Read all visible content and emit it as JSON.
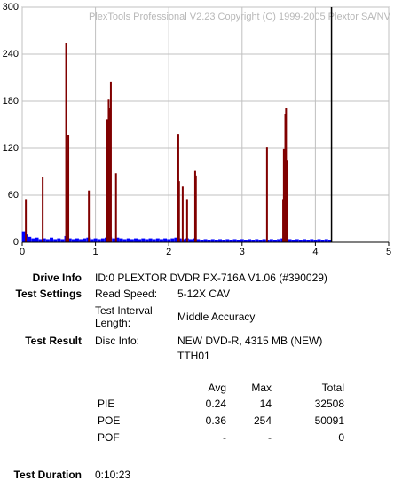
{
  "chart_data": {
    "type": "bar",
    "watermark": "PlexTools Professional V2.23 Copyright (C) 1999-2005 Plextor SA/NV",
    "xlim": [
      0,
      5
    ],
    "xticks": [
      0,
      1,
      2,
      3,
      4,
      5
    ],
    "ylim": [
      0,
      300
    ],
    "yticks": [
      0,
      60,
      120,
      180,
      240,
      300
    ],
    "grid": true,
    "end_marker": 4.22,
    "series": [
      {
        "name": "PIE",
        "color": "#0000ff",
        "x": [
          0.02,
          0.05,
          0.1,
          0.15,
          0.2,
          0.25,
          0.3,
          0.35,
          0.4,
          0.45,
          0.5,
          0.55,
          0.6,
          0.65,
          0.7,
          0.75,
          0.8,
          0.85,
          0.9,
          0.95,
          1,
          1.05,
          1.1,
          1.15,
          1.2,
          1.25,
          1.3,
          1.35,
          1.4,
          1.45,
          1.5,
          1.55,
          1.6,
          1.65,
          1.7,
          1.75,
          1.8,
          1.85,
          1.9,
          1.95,
          2,
          2.05,
          2.1,
          2.15,
          2.2,
          2.25,
          2.3,
          2.35,
          2.4,
          2.45,
          2.5,
          2.55,
          2.6,
          2.65,
          2.7,
          2.75,
          2.8,
          2.85,
          2.9,
          2.95,
          3,
          3.05,
          3.1,
          3.15,
          3.2,
          3.25,
          3.3,
          3.35,
          3.4,
          3.45,
          3.5,
          3.55,
          3.6,
          3.65,
          3.7,
          3.75,
          3.8,
          3.85,
          3.9,
          3.95,
          4,
          4.05,
          4.1,
          4.15,
          4.2
        ],
        "values": [
          14,
          10,
          7,
          5,
          6,
          4,
          5,
          4,
          6,
          4,
          5,
          4,
          8,
          5,
          4,
          5,
          4,
          5,
          6,
          4,
          5,
          4,
          5,
          6,
          7,
          5,
          6,
          5,
          4,
          5,
          4,
          5,
          4,
          5,
          4,
          5,
          4,
          5,
          4,
          5,
          4,
          5,
          6,
          5,
          4,
          5,
          4,
          5,
          4,
          3,
          4,
          3,
          4,
          3,
          4,
          3,
          4,
          3,
          4,
          3,
          4,
          3,
          4,
          3,
          4,
          3,
          4,
          3,
          4,
          3,
          4,
          5,
          6,
          4,
          3,
          4,
          3,
          4,
          3,
          4,
          3,
          4,
          3,
          4,
          3
        ]
      },
      {
        "name": "POE",
        "color": "#800000",
        "x": [
          0.05,
          0.28,
          0.6,
          0.61,
          0.63,
          0.91,
          1.16,
          1.18,
          1.2,
          1.21,
          1.28,
          2.13,
          2.14,
          2.19,
          2.25,
          2.36,
          2.37,
          3.34,
          3.56,
          3.57,
          3.59,
          3.6,
          3.61,
          3.62
        ],
        "values": [
          55,
          83,
          254,
          105,
          137,
          66,
          157,
          182,
          171,
          205,
          88,
          138,
          78,
          71,
          55,
          91,
          85,
          121,
          55,
          119,
          164,
          171,
          105,
          94
        ]
      }
    ]
  },
  "report": {
    "drive_info": {
      "label": "Drive Info",
      "value": "ID:0 PLEXTOR DVDR PX-716A V1.06 (#390029)"
    },
    "test_settings": {
      "label": "Test Settings",
      "rows": [
        [
          "Read Speed:",
          "5-12X CAV"
        ],
        [
          "Test Interval Length:",
          "Middle Accuracy"
        ]
      ]
    },
    "test_result": {
      "label": "Test Result",
      "disc_label": "Disc Info:",
      "disc_lines": [
        "NEW DVD-R, 4315 MB (NEW)",
        "TTH01"
      ],
      "stats": {
        "header": [
          "Avg",
          "Max",
          "Total"
        ],
        "rows": [
          [
            "PIE",
            "0.24",
            "14",
            "32508"
          ],
          [
            "POE",
            "0.36",
            "254",
            "50091"
          ],
          [
            "POF",
            "-",
            "-",
            "0"
          ]
        ]
      }
    },
    "test_duration": {
      "label": "Test Duration",
      "value": "0:10:23"
    }
  }
}
